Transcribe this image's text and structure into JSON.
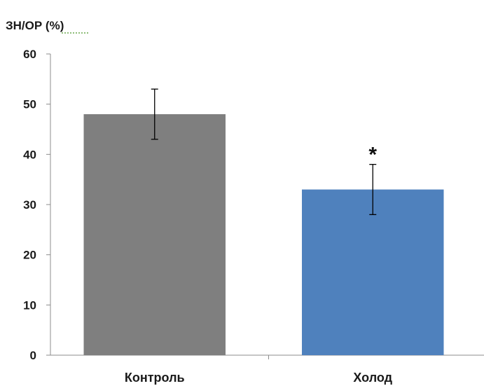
{
  "chart_data": {
    "type": "bar",
    "ylabel": "ЗН/ОР (%)",
    "categories": [
      "Контроль",
      "Холод"
    ],
    "values": [
      48,
      33
    ],
    "error_low": [
      43,
      28
    ],
    "error_high": [
      53,
      38
    ],
    "bar_colors": [
      "#7f7f7f",
      "#4f81bd"
    ],
    "ylim": [
      0,
      60
    ],
    "yticks": [
      0,
      10,
      20,
      30,
      40,
      50,
      60
    ],
    "grid": false,
    "annotations": [
      {
        "category": "Холод",
        "text": "*"
      }
    ]
  }
}
